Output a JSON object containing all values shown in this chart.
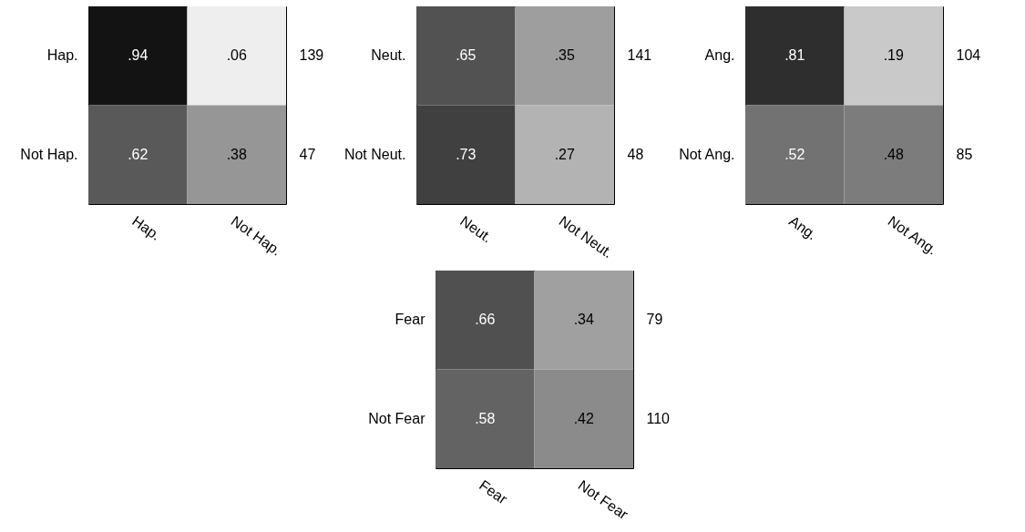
{
  "chart_data": [
    {
      "type": "heatmap",
      "categories": [
        "Hap.",
        "Not Hap."
      ],
      "y_categories": [
        "Hap.",
        "Not Hap."
      ],
      "y2_categories": [
        "139",
        "47"
      ],
      "cells": [
        [
          0.94,
          0.06
        ],
        [
          0.62,
          0.38
        ]
      ],
      "cell_labels": [
        [
          ".94",
          ".06"
        ],
        [
          ".62",
          ".38"
        ]
      ]
    },
    {
      "type": "heatmap",
      "categories": [
        "Neut.",
        "Not Neut."
      ],
      "y_categories": [
        "Neut.",
        "Not Neut."
      ],
      "y2_categories": [
        "141",
        "48"
      ],
      "cells": [
        [
          0.65,
          0.35
        ],
        [
          0.73,
          0.27
        ]
      ],
      "cell_labels": [
        [
          ".65",
          ".35"
        ],
        [
          ".73",
          ".27"
        ]
      ]
    },
    {
      "type": "heatmap",
      "categories": [
        "Ang.",
        "Not Ang."
      ],
      "y_categories": [
        "Ang.",
        "Not Ang."
      ],
      "y2_categories": [
        "104",
        "85"
      ],
      "cells": [
        [
          0.81,
          0.19
        ],
        [
          0.52,
          0.48
        ]
      ],
      "cell_labels": [
        [
          ".81",
          ".19"
        ],
        [
          ".52",
          ".48"
        ]
      ]
    },
    {
      "type": "heatmap",
      "categories": [
        "Fear",
        "Not Fear"
      ],
      "y_categories": [
        "Fear",
        "Not Fear"
      ],
      "y2_categories": [
        "79",
        "110"
      ],
      "cells": [
        [
          0.66,
          0.34
        ],
        [
          0.58,
          0.42
        ]
      ],
      "cell_labels": [
        [
          ".66",
          ".34"
        ],
        [
          ".58",
          ".42"
        ]
      ]
    }
  ]
}
